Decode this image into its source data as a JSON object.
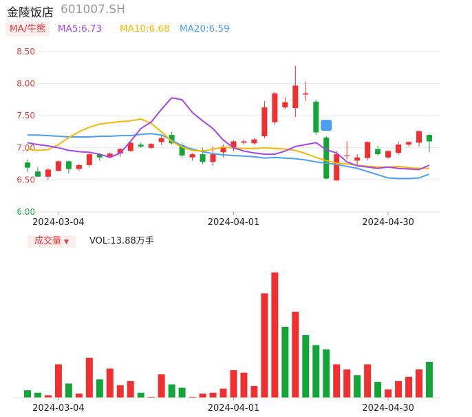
{
  "header": {
    "name": "金陵饭店",
    "code": "601007.SH"
  },
  "legend": {
    "ma_label": "MA/牛熊",
    "ma5": "MA5:6.73",
    "ma10": "MA10:6.68",
    "ma20": "MA20:6.59"
  },
  "volume_header": {
    "tag": "成交量",
    "value": "VOL:13.88万手"
  },
  "colors": {
    "up": "#f03030",
    "down": "#13a538",
    "ma5": "#a344f0",
    "ma10": "#f5b800",
    "ma20": "#4a9ff0",
    "axis_text": "#e43a3a",
    "axis_low": "#13a538"
  },
  "chart_data": [
    {
      "type": "candlestick",
      "y_ticks": [
        "8.50",
        "8.00",
        "7.50",
        "7.00",
        "6.50",
        "6.00"
      ],
      "ylim": [
        6.0,
        8.5
      ],
      "x_labels": [
        "2024-03-04",
        "2024-04-01",
        "2024-04-30"
      ],
      "candles": [
        {
          "o": 6.77,
          "h": 6.82,
          "l": 6.62,
          "c": 6.69
        },
        {
          "o": 6.63,
          "h": 6.7,
          "l": 6.55,
          "c": 6.55
        },
        {
          "o": 6.55,
          "h": 6.68,
          "l": 6.5,
          "c": 6.66
        },
        {
          "o": 6.64,
          "h": 6.8,
          "l": 6.63,
          "c": 6.79
        },
        {
          "o": 6.79,
          "h": 6.8,
          "l": 6.6,
          "c": 6.67
        },
        {
          "o": 6.67,
          "h": 6.75,
          "l": 6.64,
          "c": 6.73
        },
        {
          "o": 6.73,
          "h": 6.92,
          "l": 6.7,
          "c": 6.9
        },
        {
          "o": 6.9,
          "h": 6.92,
          "l": 6.8,
          "c": 6.85
        },
        {
          "o": 6.86,
          "h": 6.93,
          "l": 6.84,
          "c": 6.91
        },
        {
          "o": 6.91,
          "h": 7.0,
          "l": 6.86,
          "c": 6.98
        },
        {
          "o": 6.95,
          "h": 7.1,
          "l": 6.94,
          "c": 7.08
        },
        {
          "o": 7.05,
          "h": 7.08,
          "l": 7.0,
          "c": 7.02
        },
        {
          "o": 7.0,
          "h": 7.07,
          "l": 6.98,
          "c": 7.06
        },
        {
          "o": 7.09,
          "h": 7.2,
          "l": 7.04,
          "c": 7.15
        },
        {
          "o": 7.2,
          "h": 7.25,
          "l": 7.05,
          "c": 7.07
        },
        {
          "o": 7.04,
          "h": 7.08,
          "l": 6.85,
          "c": 6.88
        },
        {
          "o": 6.85,
          "h": 6.92,
          "l": 6.8,
          "c": 6.9
        },
        {
          "o": 6.9,
          "h": 7.0,
          "l": 6.75,
          "c": 6.78
        },
        {
          "o": 6.78,
          "h": 7.02,
          "l": 6.72,
          "c": 6.9
        },
        {
          "o": 6.93,
          "h": 7.05,
          "l": 6.85,
          "c": 7.02
        },
        {
          "o": 6.99,
          "h": 7.12,
          "l": 6.95,
          "c": 7.1
        },
        {
          "o": 7.08,
          "h": 7.13,
          "l": 7.05,
          "c": 7.1
        },
        {
          "o": 7.07,
          "h": 7.15,
          "l": 7.05,
          "c": 7.13
        },
        {
          "o": 7.18,
          "h": 7.73,
          "l": 7.15,
          "c": 7.63
        },
        {
          "o": 7.4,
          "h": 7.87,
          "l": 7.36,
          "c": 7.85
        },
        {
          "o": 7.63,
          "h": 7.79,
          "l": 7.61,
          "c": 7.71
        },
        {
          "o": 7.62,
          "h": 8.28,
          "l": 7.48,
          "c": 7.97
        },
        {
          "o": 7.83,
          "h": 8.03,
          "l": 7.73,
          "c": 7.85
        },
        {
          "o": 7.72,
          "h": 7.75,
          "l": 7.2,
          "c": 7.24
        },
        {
          "o": 7.16,
          "h": 7.18,
          "l": 6.51,
          "c": 6.52
        },
        {
          "o": 6.49,
          "h": 6.95,
          "l": 6.49,
          "c": 6.9
        },
        {
          "o": 6.87,
          "h": 7.1,
          "l": 6.82,
          "c": 6.88
        },
        {
          "o": 6.8,
          "h": 6.9,
          "l": 6.72,
          "c": 6.85
        },
        {
          "o": 6.84,
          "h": 7.1,
          "l": 6.8,
          "c": 7.09
        },
        {
          "o": 6.98,
          "h": 7.03,
          "l": 6.88,
          "c": 6.9
        },
        {
          "o": 6.85,
          "h": 6.96,
          "l": 6.83,
          "c": 6.95
        },
        {
          "o": 6.92,
          "h": 7.1,
          "l": 6.89,
          "c": 7.05
        },
        {
          "o": 7.05,
          "h": 7.1,
          "l": 7.02,
          "c": 7.09
        },
        {
          "o": 7.08,
          "h": 7.27,
          "l": 7.02,
          "c": 7.26
        },
        {
          "o": 7.2,
          "h": 7.22,
          "l": 6.93,
          "c": 7.1
        }
      ],
      "ma5": [
        7.08,
        7.05,
        7.03,
        7.0,
        6.96,
        6.94,
        6.93,
        6.9,
        6.85,
        6.92,
        7.1,
        7.3,
        7.4,
        7.6,
        7.78,
        7.75,
        7.55,
        7.42,
        7.3,
        7.12,
        7.0,
        6.95,
        6.92,
        6.9,
        6.9,
        6.95,
        7.02,
        7.05,
        7.08,
        6.97,
        6.92,
        6.78,
        6.72,
        6.7,
        6.68,
        6.7,
        6.68,
        6.67,
        6.66,
        6.73
      ],
      "ma10": [
        6.98,
        6.96,
        6.97,
        7.05,
        7.16,
        7.25,
        7.32,
        7.37,
        7.39,
        7.41,
        7.42,
        7.45,
        7.38,
        7.25,
        7.1,
        7.01,
        6.96,
        6.95,
        6.98,
        7.01,
        7.0,
        6.99,
        6.99,
        7.0,
        6.99,
        6.98,
        6.96,
        6.91,
        6.85,
        6.8,
        6.76,
        6.75,
        6.73,
        6.71,
        6.7,
        6.7,
        6.71,
        6.69,
        6.68,
        6.68
      ],
      "ma20": [
        7.2,
        7.2,
        7.19,
        7.18,
        7.17,
        7.17,
        7.17,
        7.18,
        7.18,
        7.19,
        7.19,
        7.21,
        7.22,
        7.2,
        7.12,
        7.03,
        6.98,
        6.94,
        6.91,
        6.89,
        6.88,
        6.87,
        6.86,
        6.84,
        6.85,
        6.84,
        6.83,
        6.81,
        6.78,
        6.76,
        6.74,
        6.71,
        6.68,
        6.63,
        6.58,
        6.53,
        6.52,
        6.52,
        6.53,
        6.59
      ]
    },
    {
      "type": "bar",
      "name": "成交量",
      "x_labels": [
        "2024-03-04",
        "2024-04-01",
        "2024-04-30"
      ],
      "values": [
        0.9,
        0.6,
        0.3,
        4.0,
        1.7,
        0.5,
        4.8,
        2.2,
        3.5,
        1.5,
        2.0,
        0.6,
        0.1,
        2.8,
        1.6,
        1.2,
        0.1,
        0.5,
        0.6,
        1.1,
        3.3,
        3.0,
        1.4,
        12.5,
        15.0,
        8.5,
        10.3,
        7.5,
        6.3,
        5.8,
        4.0,
        3.4,
        2.7,
        4.0,
        1.9,
        1.0,
        2.0,
        2.5,
        3.4,
        4.3
      ],
      "up": [
        0,
        0,
        1,
        1,
        0,
        1,
        1,
        0,
        1,
        1,
        1,
        0,
        1,
        1,
        0,
        0,
        1,
        1,
        1,
        1,
        1,
        1,
        1,
        1,
        1,
        0,
        1,
        0,
        0,
        0,
        1,
        1,
        0,
        1,
        0,
        1,
        1,
        1,
        1,
        0
      ]
    }
  ]
}
